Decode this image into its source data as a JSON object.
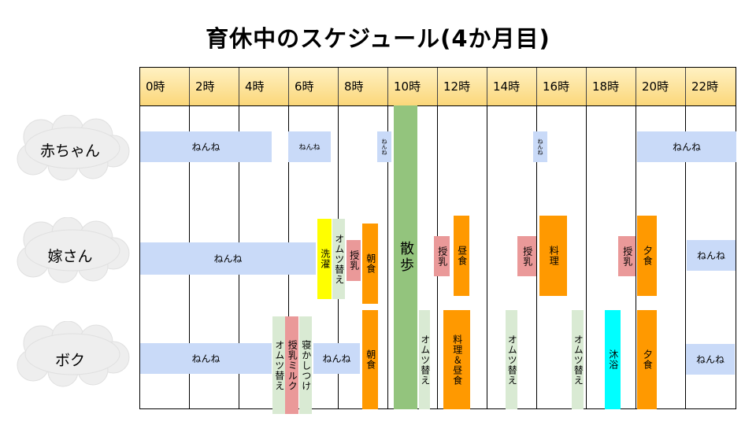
{
  "title": "育休中のスケジュール(4か月目)",
  "hours": [
    "0時",
    "2時",
    "4時",
    "6時",
    "8時",
    "10時",
    "12時",
    "14時",
    "16時",
    "18時",
    "20時",
    "22時"
  ],
  "rows": {
    "baby": "赤ちゃん",
    "wife": "嫁さん",
    "me": "ボク"
  },
  "baby": {
    "sleep1": "ねんね",
    "sleep2": "ねんね",
    "sleep3": "ねんね",
    "sleep4": "ねんね",
    "sleep5": "ねんね"
  },
  "walk": "散歩",
  "wife": {
    "sleep": "ねんね",
    "laundry": "洗濯",
    "diaper": "オムツ替え",
    "feed1": "授乳",
    "breakfast": "朝食",
    "feed2": "授乳",
    "lunch": "昼食",
    "feed3": "授乳",
    "cooking": "料理",
    "feed4": "授乳",
    "dinner": "夕食",
    "sleep_night": "ねんね"
  },
  "me": {
    "sleep": "ねんね",
    "diaper_morning": "オムツ替え",
    "milk": "授乳ミルク",
    "put_to_sleep": "寝かしつけ",
    "nap": "ねんね",
    "breakfast": "朝食",
    "diaper1": "オムツ替え",
    "cook_lunch": "料理＆昼食",
    "diaper2": "オムツ替え",
    "diaper3": "オムツ替え",
    "bath": "沐浴",
    "dinner": "夕食",
    "sleep_night": "ねんね"
  },
  "colors": {
    "sleep": "#c9daf8",
    "walk": "#93c47d",
    "diaper": "#d9ead3",
    "feed": "#ea9999",
    "meal": "#ff9900",
    "laundry": "#ffff00",
    "bath": "#00ffff",
    "header": "#fbd77a"
  }
}
